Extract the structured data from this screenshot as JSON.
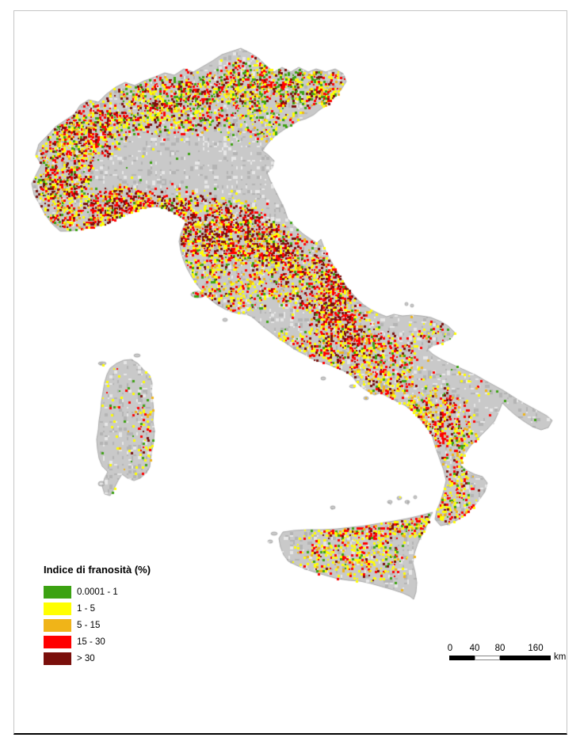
{
  "map": {
    "land_color": "#c9c9c9",
    "sea_color": "#ffffff",
    "coast_color": "#a3a3a3"
  },
  "legend": {
    "title": "Indice di franosità (%)",
    "items": [
      {
        "label": "0.0001 - 1",
        "color": "#3ca212"
      },
      {
        "label": "1 - 5",
        "color": "#ffff00"
      },
      {
        "label": "5 - 15",
        "color": "#f0b418"
      },
      {
        "label": "15 - 30",
        "color": "#ff0000"
      },
      {
        "label": "> 30",
        "color": "#7a0f0b"
      }
    ]
  },
  "scale_bar": {
    "tick_labels": [
      "0",
      "40",
      "80",
      "160"
    ],
    "unit_label": "km",
    "bar_color": "#000000"
  }
}
